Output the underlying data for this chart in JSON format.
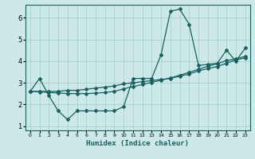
{
  "xlabel": "Humidex (Indice chaleur)",
  "xlim": [
    -0.5,
    23.5
  ],
  "ylim": [
    0.8,
    6.6
  ],
  "yticks": [
    1,
    2,
    3,
    4,
    5,
    6
  ],
  "xticks": [
    0,
    1,
    2,
    3,
    4,
    5,
    6,
    7,
    8,
    9,
    10,
    11,
    12,
    13,
    14,
    15,
    16,
    17,
    18,
    19,
    20,
    21,
    22,
    23
  ],
  "bg_color": "#cce8e8",
  "grid_color": "#aacece",
  "line_color": "#1a6060",
  "line1_x": [
    0,
    1,
    2,
    3,
    4,
    5,
    6,
    7,
    8,
    9,
    10,
    11,
    12,
    13,
    14,
    15,
    16,
    17,
    18,
    19,
    20,
    21,
    22,
    23
  ],
  "line1_y": [
    2.6,
    3.2,
    2.4,
    1.7,
    1.3,
    1.7,
    1.7,
    1.7,
    1.7,
    1.7,
    1.9,
    3.2,
    3.2,
    3.2,
    4.3,
    6.3,
    6.4,
    5.7,
    3.8,
    3.85,
    3.9,
    4.5,
    4.0,
    4.6
  ],
  "line2_x": [
    0,
    1,
    2,
    3,
    4,
    5,
    6,
    7,
    8,
    9,
    10,
    11,
    12,
    13,
    14,
    15,
    16,
    17,
    18,
    19,
    20,
    21,
    22,
    23
  ],
  "line2_y": [
    2.6,
    2.6,
    2.6,
    2.6,
    2.65,
    2.65,
    2.7,
    2.75,
    2.8,
    2.85,
    2.95,
    3.0,
    3.05,
    3.1,
    3.15,
    3.2,
    3.3,
    3.4,
    3.55,
    3.65,
    3.75,
    3.9,
    4.05,
    4.15
  ],
  "line3_x": [
    0,
    1,
    2,
    3,
    4,
    5,
    6,
    7,
    8,
    9,
    10,
    11,
    12,
    13,
    14,
    15,
    16,
    17,
    18,
    19,
    20,
    21,
    22,
    23
  ],
  "line3_y": [
    2.6,
    2.58,
    2.55,
    2.53,
    2.5,
    2.5,
    2.5,
    2.52,
    2.55,
    2.6,
    2.72,
    2.82,
    2.92,
    3.02,
    3.12,
    3.22,
    3.35,
    3.48,
    3.62,
    3.76,
    3.88,
    4.02,
    4.1,
    4.22
  ]
}
